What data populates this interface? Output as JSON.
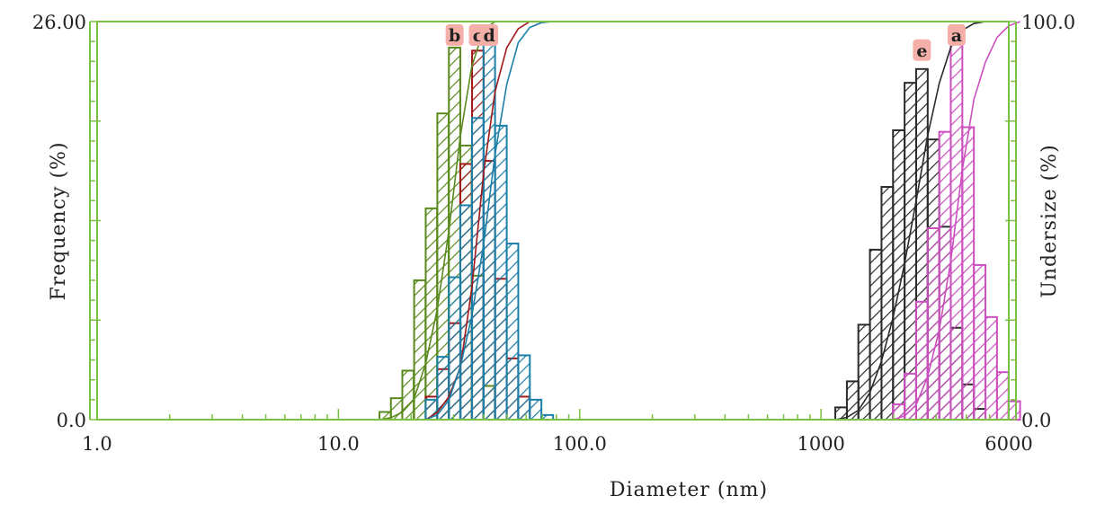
{
  "chart_data": {
    "type": "bar",
    "xlabel": "Diameter (nm)",
    "ylabel": "Frequency (%)",
    "y2label": "Undersize (%)",
    "x_scale": "log",
    "xlim": [
      1.0,
      6000
    ],
    "ylim": [
      0,
      26
    ],
    "y2lim": [
      0,
      100
    ],
    "x_tick_labels": [
      {
        "value": 1.0,
        "label": "1.0"
      },
      {
        "value": 10.0,
        "label": "10.0"
      },
      {
        "value": 100.0,
        "label": "100.0"
      },
      {
        "value": 1000,
        "label": "1000"
      },
      {
        "value": 6000,
        "label": "6000"
      }
    ],
    "y_tick_labels": [
      {
        "value": 0,
        "label": "0.0"
      },
      {
        "value": 26,
        "label": "26.00"
      }
    ],
    "y2_tick_labels": [
      {
        "value": 0,
        "label": "0.0"
      },
      {
        "value": 100,
        "label": "100.0"
      }
    ],
    "grid": false,
    "series": [
      {
        "name": "b",
        "color": "#5a8a1e",
        "label_bg": "#f4b0a8",
        "bins": [
          [
            14.8,
            0.5
          ],
          [
            16.5,
            1.4
          ],
          [
            18.4,
            3.2
          ],
          [
            20.6,
            9.1
          ],
          [
            23.0,
            13.8
          ],
          [
            25.7,
            20.0
          ],
          [
            28.7,
            24.3
          ],
          [
            32.0,
            17.9
          ],
          [
            35.8,
            9.4
          ],
          [
            39.9,
            2.2
          ]
        ]
      },
      {
        "name": "c",
        "color": "#a01818",
        "label_bg": "#f4b0a8",
        "bins": [
          [
            23.0,
            1.5
          ],
          [
            25.7,
            3.3
          ],
          [
            28.7,
            6.3
          ],
          [
            32.0,
            16.7
          ],
          [
            35.8,
            24.1
          ],
          [
            39.9,
            16.9
          ],
          [
            44.6,
            9.2
          ],
          [
            49.8,
            4.0
          ],
          [
            55.6,
            1.5
          ]
        ]
      },
      {
        "name": "d",
        "color": "#1b7fa8",
        "label_bg": "#f4b0a8",
        "bins": [
          [
            23.0,
            1.3
          ],
          [
            25.7,
            4.1
          ],
          [
            28.7,
            9.3
          ],
          [
            32.0,
            14.0
          ],
          [
            35.8,
            19.7
          ],
          [
            39.9,
            24.6
          ],
          [
            44.6,
            19.2
          ],
          [
            49.8,
            11.5
          ],
          [
            55.6,
            4.2
          ],
          [
            62.1,
            1.3
          ],
          [
            69.4,
            0.3
          ]
        ]
      },
      {
        "name": "e",
        "color": "#2b2b2b",
        "label_bg": "#f4b0a8",
        "bins": [
          [
            1146,
            0.8
          ],
          [
            1280,
            2.5
          ],
          [
            1428,
            6.2
          ],
          [
            1595,
            11.1
          ],
          [
            1781,
            15.2
          ],
          [
            1988,
            18.9
          ],
          [
            2220,
            22.0
          ],
          [
            2478,
            22.9
          ],
          [
            2767,
            18.3
          ],
          [
            3089,
            12.6
          ],
          [
            3449,
            6.0
          ],
          [
            3851,
            2.3
          ],
          [
            4300,
            0.7
          ]
        ]
      },
      {
        "name": "a",
        "color": "#cc4fbf",
        "label_bg": "#f4b0a8",
        "bins": [
          [
            1988,
            1.0
          ],
          [
            2220,
            3.0
          ],
          [
            2478,
            7.7
          ],
          [
            2767,
            12.5
          ],
          [
            3089,
            18.8
          ],
          [
            3449,
            24.6
          ],
          [
            3851,
            19.1
          ],
          [
            4300,
            10.1
          ],
          [
            4801,
            6.7
          ],
          [
            5361,
            3.1
          ],
          [
            5985,
            1.2
          ]
        ]
      }
    ]
  }
}
